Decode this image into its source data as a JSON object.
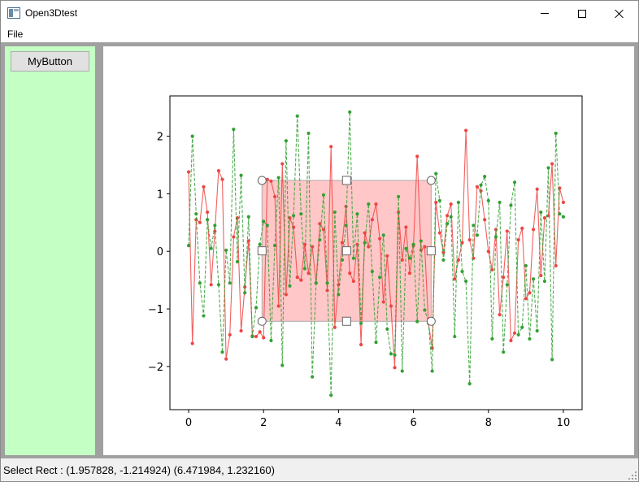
{
  "window": {
    "title": "Open3Dtest",
    "app_icon": "app-window-icon",
    "controls": [
      "minimize-icon",
      "maximize-icon",
      "close-icon"
    ]
  },
  "menu": {
    "items": [
      {
        "label": "File"
      }
    ]
  },
  "left_panel": {
    "background": "#c4ffc4",
    "button_label": "MyButton"
  },
  "status_bar": {
    "text": "Select Rect : (1.957828, -1.214924) (6.471984, 1.232160)"
  },
  "chart_data": {
    "type": "line",
    "title": "",
    "xlabel": "",
    "ylabel": "",
    "xlim": [
      -0.5,
      10.5
    ],
    "ylim": [
      -2.75,
      2.7
    ],
    "xticks": [
      0,
      2,
      4,
      6,
      8,
      10
    ],
    "xtick_labels": [
      "0",
      "2",
      "4",
      "6",
      "8",
      "10"
    ],
    "yticks": [
      2,
      1,
      0,
      -1,
      -2
    ],
    "ytick_labels": [
      "2",
      "1",
      "0",
      "−1",
      "−2"
    ],
    "grid": false,
    "legend": false,
    "series": [
      {
        "color": "#ee4444",
        "style": "solid",
        "x": [
          0.0,
          0.1,
          0.2,
          0.3,
          0.4,
          0.5,
          0.6,
          0.7,
          0.8,
          0.9,
          1.0,
          1.1,
          1.2,
          1.3,
          1.4,
          1.5,
          1.6,
          1.7,
          1.8,
          1.9,
          2.0,
          2.1,
          2.2,
          2.3,
          2.4,
          2.5,
          2.6,
          2.7,
          2.8,
          2.9,
          3.0,
          3.1,
          3.2,
          3.3,
          3.4,
          3.5,
          3.6,
          3.7,
          3.8,
          3.9,
          4.0,
          4.1,
          4.2,
          4.3,
          4.4,
          4.5,
          4.6,
          4.7,
          4.8,
          4.9,
          5.0,
          5.1,
          5.2,
          5.3,
          5.4,
          5.5,
          5.6,
          5.7,
          5.8,
          5.9,
          6.0,
          6.1,
          6.2,
          6.3,
          6.4,
          6.5,
          6.6,
          6.7,
          6.8,
          6.9,
          7.0,
          7.1,
          7.2,
          7.3,
          7.4,
          7.5,
          7.6,
          7.7,
          7.8,
          7.9,
          8.0,
          8.1,
          8.2,
          8.3,
          8.4,
          8.5,
          8.6,
          8.7,
          8.8,
          8.9,
          9.0,
          9.1,
          9.2,
          9.3,
          9.4,
          9.5,
          9.6,
          9.7,
          9.8,
          9.9,
          10.0
        ],
        "y": [
          1.38,
          -1.6,
          0.55,
          0.5,
          1.12,
          0.68,
          -0.58,
          0.35,
          1.4,
          1.25,
          -1.87,
          -1.45,
          0.25,
          0.58,
          -1.38,
          -0.62,
          0.18,
          -1.47,
          -1.48,
          -1.4,
          -1.5,
          1.25,
          1.22,
          0.95,
          -0.95,
          1.52,
          -0.75,
          0.58,
          0.42,
          -0.45,
          -0.5,
          0.12,
          -0.38,
          0.08,
          -0.55,
          0.48,
          0.38,
          -0.68,
          1.82,
          -1.32,
          -0.58,
          0.15,
          0.78,
          -0.38,
          -0.52,
          0.12,
          -1.62,
          0.32,
          0.08,
          0.55,
          0.82,
          0.22,
          -0.88,
          -0.08,
          -0.95,
          -2.02,
          0.68,
          -0.15,
          0.42,
          -0.38,
          0.1,
          1.65,
          0.02,
          0.08,
          -1.25,
          -1.68,
          0.85,
          0.32,
          -0.02,
          0.62,
          0.82,
          -0.48,
          -0.15,
          0.15,
          2.1,
          0.2,
          -0.12,
          1.12,
          1.05,
          0.55,
          0.0,
          -0.32,
          0.38,
          -1.1,
          -0.45,
          0.35,
          -1.55,
          -1.42,
          0.2,
          0.4,
          -0.82,
          -0.72,
          0.38,
          1.08,
          -0.42,
          0.58,
          0.62,
          1.52,
          -0.25,
          1.1,
          0.85
        ]
      },
      {
        "color": "#33a033",
        "style": "dashed",
        "x": [
          0.0,
          0.1,
          0.2,
          0.3,
          0.4,
          0.5,
          0.6,
          0.7,
          0.8,
          0.9,
          1.0,
          1.1,
          1.2,
          1.3,
          1.4,
          1.5,
          1.6,
          1.7,
          1.8,
          1.9,
          2.0,
          2.1,
          2.2,
          2.3,
          2.4,
          2.5,
          2.6,
          2.7,
          2.8,
          2.9,
          3.0,
          3.1,
          3.2,
          3.3,
          3.4,
          3.5,
          3.6,
          3.7,
          3.8,
          3.9,
          4.0,
          4.1,
          4.2,
          4.3,
          4.4,
          4.5,
          4.6,
          4.7,
          4.8,
          4.9,
          5.0,
          5.1,
          5.2,
          5.3,
          5.4,
          5.5,
          5.6,
          5.7,
          5.8,
          5.9,
          6.0,
          6.1,
          6.2,
          6.3,
          6.4,
          6.5,
          6.6,
          6.7,
          6.8,
          6.9,
          7.0,
          7.1,
          7.2,
          7.3,
          7.4,
          7.5,
          7.6,
          7.7,
          7.8,
          7.9,
          8.0,
          8.1,
          8.2,
          8.3,
          8.4,
          8.5,
          8.6,
          8.7,
          8.8,
          8.9,
          9.0,
          9.1,
          9.2,
          9.3,
          9.4,
          9.5,
          9.6,
          9.7,
          9.8,
          9.9,
          10.0
        ],
        "y": [
          0.1,
          2.0,
          0.65,
          -0.55,
          -1.12,
          0.55,
          0.05,
          0.45,
          -0.58,
          -1.75,
          0.02,
          -0.55,
          2.12,
          -0.18,
          1.32,
          -0.72,
          0.6,
          -1.48,
          -0.98,
          0.12,
          0.52,
          0.45,
          -1.55,
          0.1,
          1.28,
          -1.98,
          1.92,
          -0.6,
          0.62,
          2.35,
          0.65,
          -0.3,
          2.05,
          -2.18,
          -0.55,
          0.2,
          0.98,
          -0.55,
          -2.5,
          0.68,
          -0.75,
          -0.15,
          0.45,
          2.42,
          -0.12,
          0.65,
          -1.25,
          0.15,
          0.82,
          -0.35,
          -1.58,
          -0.45,
          0.28,
          -1.35,
          -1.78,
          -1.8,
          0.95,
          -2.08,
          0.05,
          -0.12,
          0.12,
          -1.22,
          0.18,
          -1.02,
          -1.22,
          -2.08,
          1.35,
          0.88,
          -0.15,
          0.48,
          0.6,
          -1.48,
          0.85,
          -0.35,
          -0.52,
          -2.3,
          0.45,
          0.28,
          1.15,
          1.3,
          0.88,
          -1.52,
          0.25,
          0.85,
          -1.75,
          -0.58,
          0.8,
          1.2,
          -1.45,
          -1.32,
          -0.25,
          -1.52,
          -0.48,
          -1.38,
          0.68,
          -0.52,
          1.45,
          -1.88,
          2.05,
          0.65,
          0.6
        ]
      }
    ],
    "selection_rect": {
      "x0": 1.957828,
      "y0": -1.214924,
      "x1": 6.471984,
      "y1": 1.23216,
      "fill": "#ff9999",
      "edge": "#aaaaaa"
    }
  }
}
